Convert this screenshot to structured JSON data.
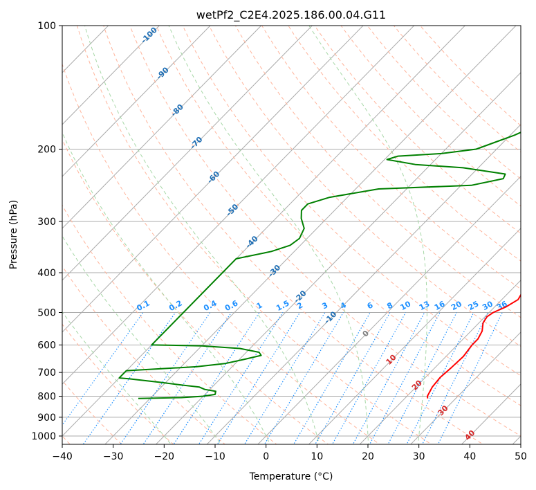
{
  "chart_data": {
    "type": "line",
    "subtype": "skew-t log-p",
    "title": "wetPf2_C2E4.2025.186.00.04.G11",
    "xlabel": "Temperature (°C)",
    "ylabel": "Pressure (hPa)",
    "xlim": [
      -40,
      50
    ],
    "ylim": [
      1050,
      100
    ],
    "y_scale": "log",
    "grid": true,
    "legend": "none",
    "x_ticks": [
      -40,
      -30,
      -20,
      -10,
      0,
      10,
      20,
      30,
      40,
      50
    ],
    "x_tick_labels": [
      "−40",
      "−30",
      "−20",
      "−10",
      "0",
      "10",
      "20",
      "30",
      "40",
      "50"
    ],
    "y_ticks": [
      100,
      200,
      300,
      400,
      500,
      600,
      700,
      800,
      900,
      1000
    ],
    "y_tick_labels": [
      "100",
      "200",
      "300",
      "400",
      "500",
      "600",
      "700",
      "800",
      "900",
      "1000"
    ],
    "colors": {
      "temperature": "#ff0000",
      "dewpoint": "#008000",
      "isotherm": "#aaaaaa",
      "dry_adiabat": "#ffb49b",
      "moist_adiabat": "#a6d7a6",
      "mixing_ratio": "#1e90ff",
      "cape_isotherm_label": "#1f6fb5",
      "moist_label": "#d62728",
      "zero_label": "#808080"
    },
    "series": [
      {
        "name": "Temperature",
        "points": [
          {
            "p": 810,
            "t": 24.5
          },
          {
            "p": 800,
            "t": 24.0
          },
          {
            "p": 760,
            "t": 23.2
          },
          {
            "p": 720,
            "t": 22.9
          },
          {
            "p": 680,
            "t": 23.2
          },
          {
            "p": 640,
            "t": 23.4
          },
          {
            "p": 600,
            "t": 22.9
          },
          {
            "p": 580,
            "t": 22.9
          },
          {
            "p": 555,
            "t": 22.2
          },
          {
            "p": 530,
            "t": 20.8
          },
          {
            "p": 512,
            "t": 20.4
          },
          {
            "p": 500,
            "t": 20.8
          },
          {
            "p": 485,
            "t": 22.2
          },
          {
            "p": 465,
            "t": 23.2
          },
          {
            "p": 440,
            "t": 22.4
          },
          {
            "p": 420,
            "t": 21.0
          },
          {
            "p": 380,
            "t": 17.5
          },
          {
            "p": 350,
            "t": 15.0
          },
          {
            "p": 320,
            "t": 13.0
          },
          {
            "p": 300,
            "t": 12.8
          },
          {
            "p": 270,
            "t": 12.3
          },
          {
            "p": 250,
            "t": 8.5
          },
          {
            "p": 232,
            "t": 5.5
          },
          {
            "p": 215,
            "t": 4.0
          },
          {
            "p": 205,
            "t": 2.5
          },
          {
            "p": 190,
            "t": -1.0
          },
          {
            "p": 170,
            "t": -4.5
          },
          {
            "p": 150,
            "t": -8.2
          },
          {
            "p": 132,
            "t": -13.0
          },
          {
            "p": 124,
            "t": -14.5
          },
          {
            "p": 118,
            "t": -12.5
          },
          {
            "p": 110,
            "t": -9.5
          },
          {
            "p": 100,
            "t": -8.5
          }
        ]
      },
      {
        "name": "Dewpoint",
        "points": [
          {
            "p": 810,
            "t": -32.3
          },
          {
            "p": 806,
            "t": -24.0
          },
          {
            "p": 800,
            "t": -20.0
          },
          {
            "p": 792,
            "t": -18.0
          },
          {
            "p": 778,
            "t": -18.5
          },
          {
            "p": 770,
            "t": -21.0
          },
          {
            "p": 760,
            "t": -22.5
          },
          {
            "p": 752,
            "t": -26.0
          },
          {
            "p": 740,
            "t": -31.0
          },
          {
            "p": 725,
            "t": -38.0
          },
          {
            "p": 722,
            "t": -40.0
          },
          {
            "p": 693,
            "t": -40.0
          },
          {
            "p": 678,
            "t": -27.0
          },
          {
            "p": 666,
            "t": -22.0
          },
          {
            "p": 650,
            "t": -19.0
          },
          {
            "p": 636,
            "t": -16.5
          },
          {
            "p": 625,
            "t": -17.5
          },
          {
            "p": 612,
            "t": -22.0
          },
          {
            "p": 603,
            "t": -30.0
          },
          {
            "p": 600,
            "t": -40.0
          },
          {
            "p": 370,
            "t": -40.0
          },
          {
            "p": 355,
            "t": -34.5
          },
          {
            "p": 343,
            "t": -32.0
          },
          {
            "p": 330,
            "t": -31.5
          },
          {
            "p": 312,
            "t": -32.5
          },
          {
            "p": 295,
            "t": -35.0
          },
          {
            "p": 282,
            "t": -36.5
          },
          {
            "p": 272,
            "t": -36.5
          },
          {
            "p": 262,
            "t": -33.5
          },
          {
            "p": 250,
            "t": -25.5
          },
          {
            "p": 245,
            "t": -8.0
          },
          {
            "p": 236,
            "t": -3.0
          },
          {
            "p": 230,
            "t": -3.5
          },
          {
            "p": 222,
            "t": -13.0
          },
          {
            "p": 218,
            "t": -23.0
          },
          {
            "p": 212,
            "t": -29.5
          },
          {
            "p": 208,
            "t": -28.0
          },
          {
            "p": 205,
            "t": -20.0
          },
          {
            "p": 200,
            "t": -14.0
          },
          {
            "p": 192,
            "t": -11.5
          },
          {
            "p": 185,
            "t": -9.2
          },
          {
            "p": 178,
            "t": -7.5
          },
          {
            "p": 165,
            "t": -4.5
          },
          {
            "p": 150,
            "t": -6.0
          },
          {
            "p": 140,
            "t": -9.5
          },
          {
            "p": 128,
            "t": -14.5
          },
          {
            "p": 115,
            "t": -17.5
          },
          {
            "p": 108,
            "t": -16.0
          },
          {
            "p": 100,
            "t": -12.5
          }
        ]
      }
    ],
    "reference_lines": {
      "isotherms_c": [
        -120,
        -110,
        -100,
        -90,
        -80,
        -70,
        -60,
        -50,
        -40,
        -30,
        -20,
        -10,
        0,
        10,
        20,
        30,
        40,
        50
      ],
      "dry_adiabats_c": [
        -40,
        -30,
        -20,
        -10,
        0,
        10,
        20,
        30,
        40,
        50,
        60,
        70,
        80,
        90,
        100,
        110,
        120,
        130,
        140,
        150,
        160
      ],
      "moist_adiabats_c": [
        -20,
        -10,
        0,
        10,
        20,
        30
      ],
      "mixing_ratios_gkg": [
        0.1,
        0.2,
        0.4,
        0.6,
        1,
        1.5,
        2,
        3,
        4,
        6,
        8,
        10,
        13,
        16,
        20,
        25,
        30,
        36
      ]
    },
    "annotations": {
      "isotherm_labels": [
        {
          "text": "-100",
          "t": -100,
          "p": 105
        },
        {
          "text": "-90",
          "t": -90,
          "p": 130
        },
        {
          "text": "-80",
          "t": -80,
          "p": 160
        },
        {
          "text": "-70",
          "t": -70,
          "p": 192
        },
        {
          "text": "-60",
          "t": -60,
          "p": 233
        },
        {
          "text": "-50",
          "t": -50,
          "p": 280
        },
        {
          "text": "-40",
          "t": -40,
          "p": 335
        },
        {
          "text": "-30",
          "t": -30,
          "p": 394
        },
        {
          "text": "-20",
          "t": -20,
          "p": 455
        },
        {
          "text": "-10",
          "t": -10,
          "p": 512
        }
      ],
      "zero_label": {
        "text": "0",
        "t": 0,
        "p": 560
      },
      "moist_labels": [
        {
          "text": "10",
          "t": 10,
          "p": 648
        },
        {
          "text": "20",
          "t": 20,
          "p": 748
        },
        {
          "text": "30",
          "t": 30,
          "p": 862
        },
        {
          "text": "40",
          "t": 40,
          "p": 990
        }
      ],
      "mixing_ratio_labels": [
        "0.1",
        "0.2",
        "0.4",
        "0.6",
        "1",
        "1.5",
        "2",
        "3",
        "4",
        "6",
        "8",
        "10",
        "13",
        "16",
        "20",
        "25",
        "30",
        "36"
      ]
    }
  }
}
